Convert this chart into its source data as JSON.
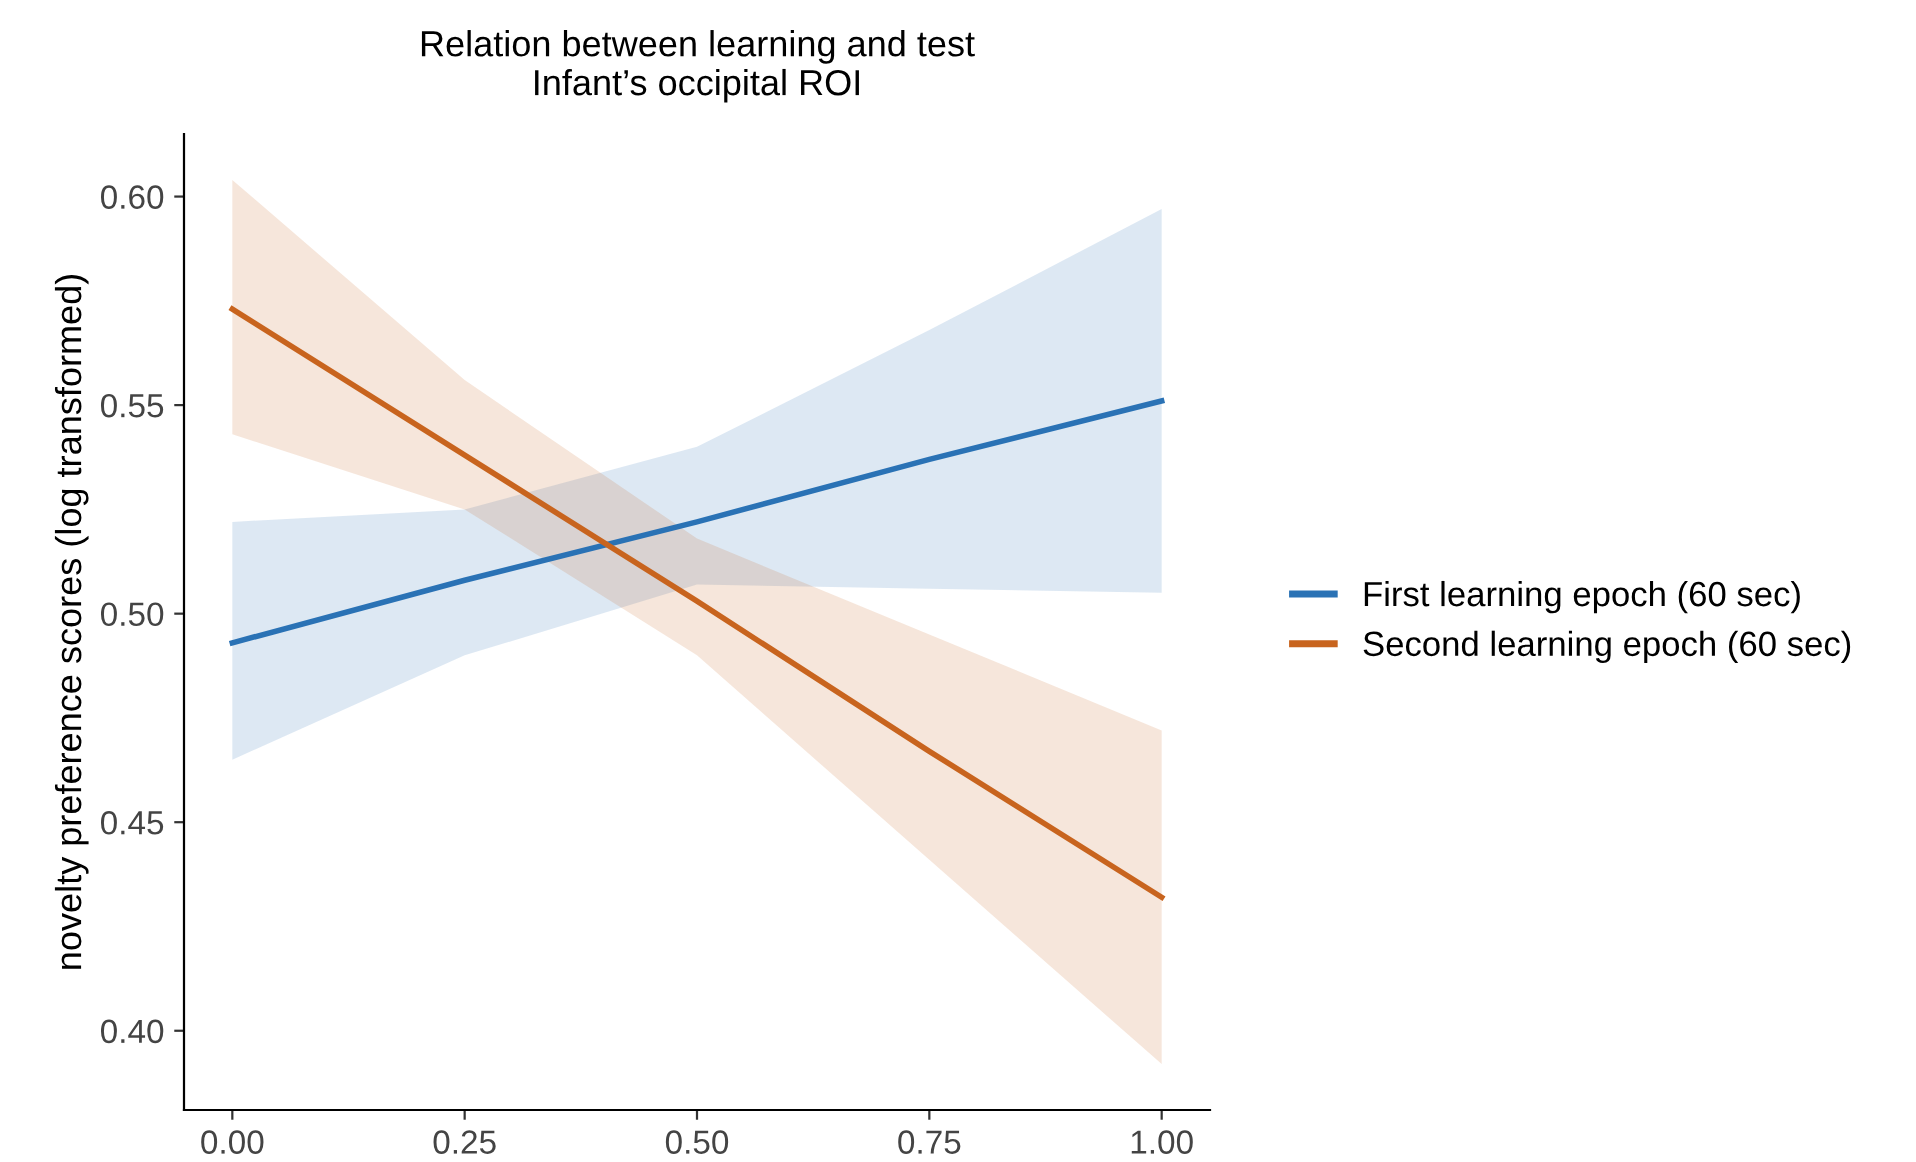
{
  "chart_data": {
    "type": "line",
    "title": "Relation between learning and test\nInfant’s occipital ROI",
    "ylabel": "novelty preference scores (log transformed)",
    "x": [
      0,
      0.25,
      0.5,
      0.75,
      1
    ],
    "series": [
      {
        "name": "First learning epoch (60 sec)",
        "color": "#2a72b5",
        "values": [
          0.493,
          0.508,
          0.522,
          0.537,
          0.551
        ],
        "lower": [
          0.465,
          0.49,
          0.507,
          0.506,
          0.505
        ],
        "upper": [
          0.522,
          0.525,
          0.54,
          0.568,
          0.597
        ]
      },
      {
        "name": "Second learning epoch (60 sec)",
        "color": "#c8641e",
        "values": [
          0.573,
          0.538,
          0.503,
          0.467,
          0.432
        ],
        "lower": [
          0.543,
          0.525,
          0.49,
          0.441,
          0.392
        ],
        "upper": [
          0.604,
          0.556,
          0.518,
          0.495,
          0.472
        ]
      }
    ],
    "xlim": [
      -0.052,
      1.052
    ],
    "xticks": [
      {
        "value": 0,
        "label": "0.00"
      },
      {
        "value": 0.25,
        "label": "0.25"
      },
      {
        "value": 0.5,
        "label": "0.50"
      },
      {
        "value": 0.75,
        "label": "0.75"
      },
      {
        "value": 1,
        "label": "1.00"
      }
    ],
    "ylim": [
      0.381,
      0.615
    ],
    "yticks": [
      {
        "value": 0.4,
        "label": "0.40"
      },
      {
        "value": 0.45,
        "label": "0.45"
      },
      {
        "value": 0.5,
        "label": "0.50"
      },
      {
        "value": 0.55,
        "label": "0.55"
      },
      {
        "value": 0.6,
        "label": "0.60"
      }
    ],
    "grid": false,
    "legend": "right",
    "line_style": "solid"
  }
}
